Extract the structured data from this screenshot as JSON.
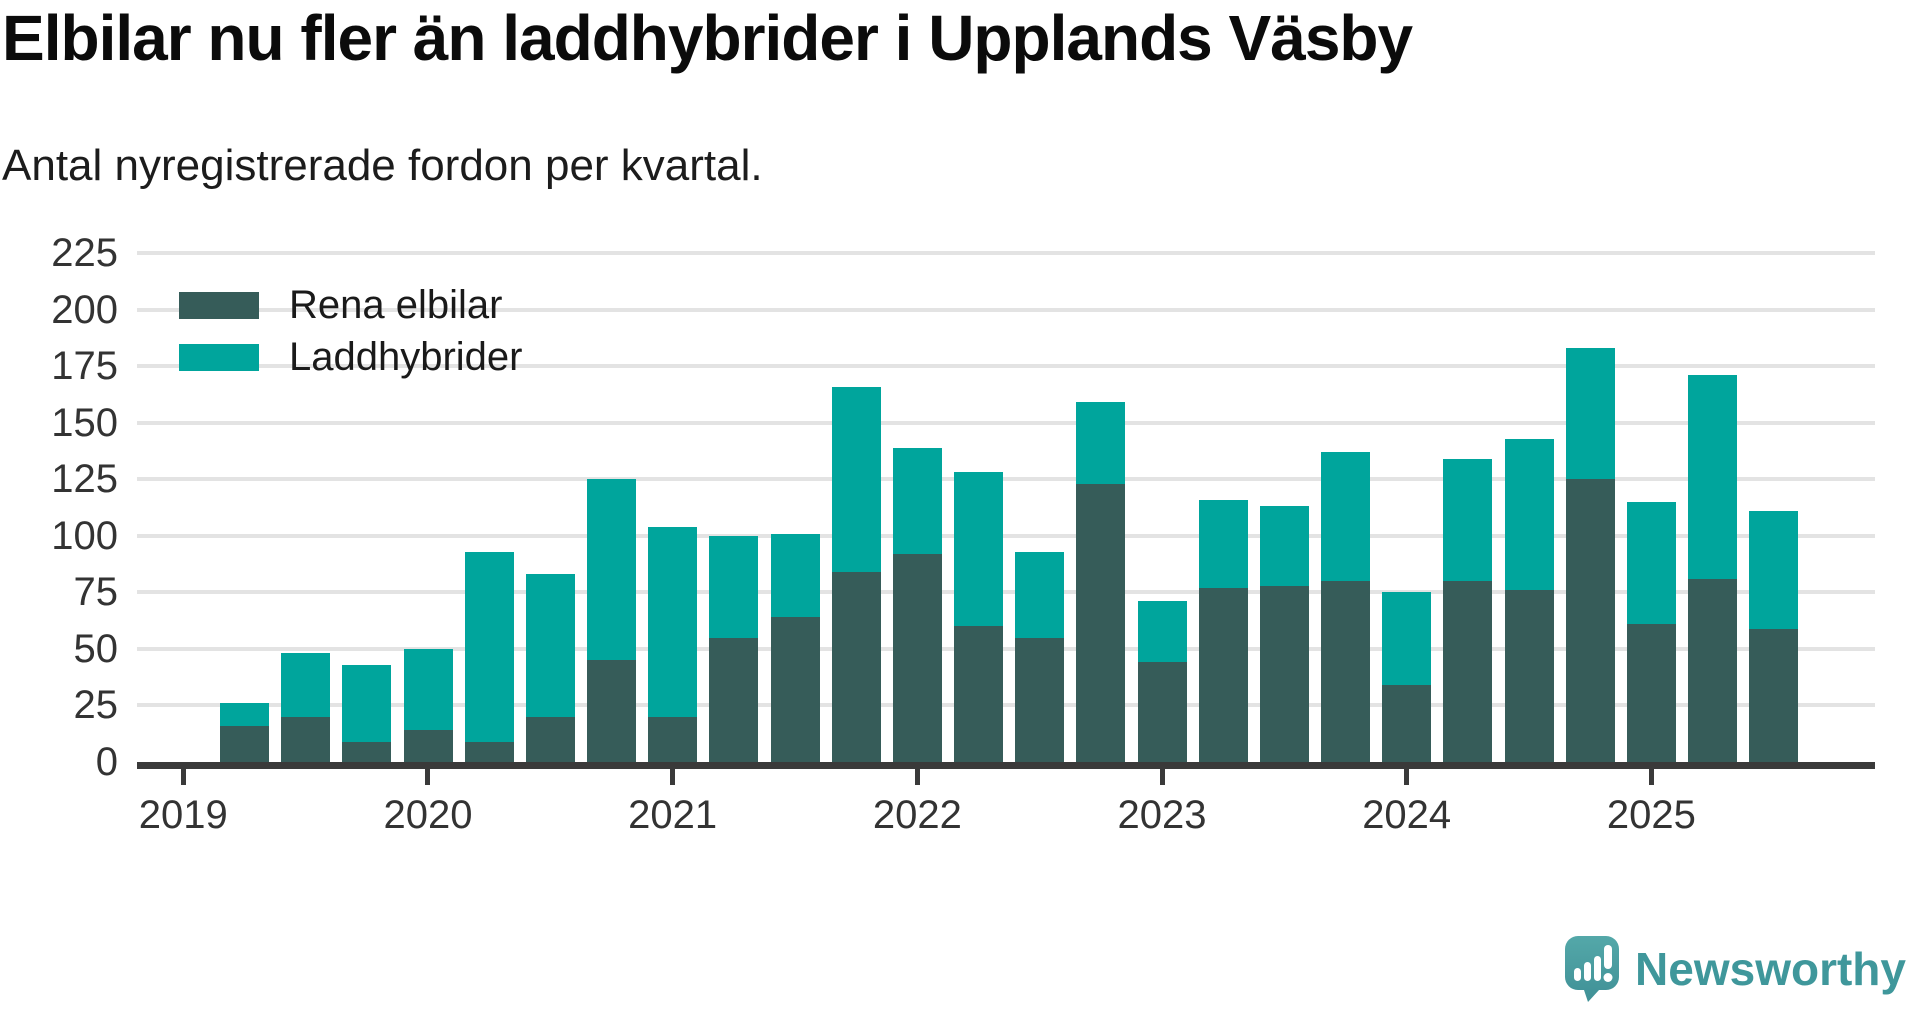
{
  "header": {
    "title": "Elbilar nu fler än laddhybrider i Upplands Väsby",
    "subtitle": "Antal nyregistrerade fordon per kvartal."
  },
  "chart_data": {
    "type": "bar",
    "stacked": true,
    "title": "Elbilar nu fler än laddhybrider i Upplands Väsby",
    "subtitle": "Antal nyregistrerade fordon per kvartal.",
    "categories": [
      "2019 Q1",
      "2019 Q2",
      "2019 Q3",
      "2019 Q4",
      "2020 Q1",
      "2020 Q2",
      "2020 Q3",
      "2020 Q4",
      "2021 Q1",
      "2021 Q2",
      "2021 Q3",
      "2021 Q4",
      "2022 Q1",
      "2022 Q2",
      "2022 Q3",
      "2022 Q4",
      "2023 Q1",
      "2023 Q2",
      "2023 Q3",
      "2023 Q4",
      "2024 Q1",
      "2024 Q2",
      "2024 Q3",
      "2024 Q4",
      "2025 Q1",
      "2025 Q2"
    ],
    "series": [
      {
        "name": "Rena elbilar",
        "color": "#365c59",
        "values": [
          16,
          20,
          9,
          14,
          9,
          20,
          45,
          20,
          55,
          64,
          84,
          92,
          60,
          55,
          123,
          44,
          77,
          78,
          80,
          34,
          80,
          76,
          125,
          61,
          81,
          59
        ]
      },
      {
        "name": "Laddhybrider",
        "color": "#00a59c",
        "values": [
          10,
          28,
          34,
          36,
          84,
          63,
          80,
          84,
          45,
          37,
          82,
          47,
          68,
          38,
          36,
          27,
          39,
          35,
          57,
          41,
          54,
          67,
          58,
          54,
          90,
          52
        ]
      }
    ],
    "totals": [
      26,
      48,
      43,
      50,
      93,
      83,
      125,
      104,
      100,
      101,
      166,
      139,
      128,
      93,
      159,
      71,
      116,
      113,
      137,
      75,
      134,
      143,
      183,
      115,
      171,
      111
    ],
    "xlabel": "",
    "ylabel": "",
    "ylim": [
      0,
      225
    ],
    "yticks": [
      0,
      25,
      50,
      75,
      100,
      125,
      150,
      175,
      200,
      225
    ],
    "xticks": [
      "2019",
      "2020",
      "2021",
      "2022",
      "2023",
      "2024",
      "2025"
    ],
    "grid": true,
    "legend_position": "top-left"
  },
  "footer": {
    "brand": "Newsworthy"
  },
  "colors": {
    "elbilar": "#365c59",
    "laddhybrider": "#00a59c",
    "gridline": "#e3e3e3",
    "axis": "#3a3a3a",
    "tick_text": "#333333",
    "logo": "#3f979b"
  }
}
